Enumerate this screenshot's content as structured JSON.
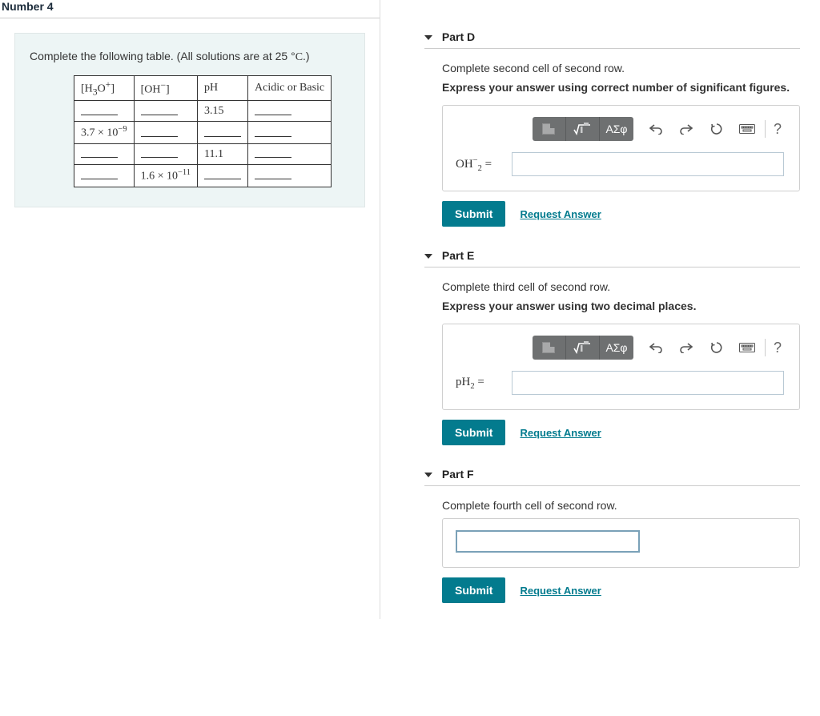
{
  "header": {
    "title": "Number 4"
  },
  "prompt": {
    "text_prefix": "Complete the following table. (All solutions are at 25 ",
    "degree": "°",
    "unit": "C",
    "suffix": ".)"
  },
  "table": {
    "headers": {
      "h3o": "[H₃O⁺]",
      "oh": "[OH⁻]",
      "ph": "pH",
      "ab": "Acidic or Basic"
    },
    "rows": [
      {
        "h3o": "",
        "oh": "",
        "ph": "3.15",
        "ab": ""
      },
      {
        "h3o": "3.7 × 10⁻⁹",
        "oh": "",
        "ph": "",
        "ab": ""
      },
      {
        "h3o": "",
        "oh": "",
        "ph": "11.1",
        "ab": ""
      },
      {
        "h3o": "",
        "oh": "1.6 × 10⁻¹¹",
        "ph": "",
        "ab": ""
      }
    ]
  },
  "toolbar": {
    "greek_label": "ΑΣφ",
    "help": "?"
  },
  "parts": [
    {
      "id": "D",
      "title": "Part D",
      "instr": "Complete second cell of second row.",
      "instr2": "Express your answer using correct number of significant figures.",
      "eq_label": "OH⁻₂ =",
      "has_toolbar": true,
      "input_kind": "eq"
    },
    {
      "id": "E",
      "title": "Part E",
      "instr": "Complete third cell of second row.",
      "instr2": "Express your answer using two decimal places.",
      "eq_label": "pH₂ =",
      "has_toolbar": true,
      "input_kind": "eq"
    },
    {
      "id": "F",
      "title": "Part F",
      "instr": "Complete fourth cell of second row.",
      "instr2": "",
      "eq_label": "",
      "has_toolbar": false,
      "input_kind": "simple"
    }
  ],
  "buttons": {
    "submit": "Submit",
    "request": "Request Answer"
  }
}
